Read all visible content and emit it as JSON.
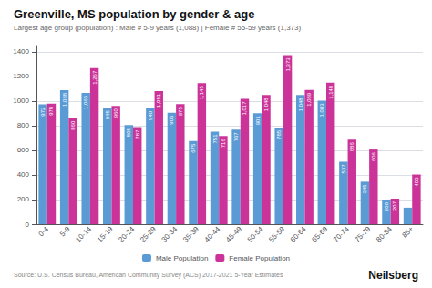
{
  "chart_data": {
    "type": "bar",
    "title": "Greenville, MS population by gender & age",
    "subtitle": "Largest age group (population) : Male # 5-9 years (1,088) | Female # 55-59 years (1,373)",
    "categories": [
      "0-4",
      "5-9",
      "10-14",
      "15-19",
      "20-24",
      "25-29",
      "30-34",
      "35-39",
      "40-44",
      "45-49",
      "50-54",
      "55-59",
      "60-64",
      "65-69",
      "70-74",
      "75-79",
      "80-84",
      "85+"
    ],
    "series": [
      {
        "name": "Male Population",
        "color": "#5b9bd5",
        "values": [
          972,
          1088,
          1066,
          945,
          805,
          940,
          905,
          675,
          751,
          767,
          901,
          785,
          1048,
          1003,
          507,
          345,
          200,
          134
        ],
        "value_labels": [
          "972",
          "1,088",
          "1,066",
          "945",
          "805",
          "940",
          "905",
          "675",
          "751",
          "767",
          "901",
          "785",
          "1,048",
          "1,003",
          "507",
          "345",
          "200",
          null
        ]
      },
      {
        "name": "Female Population",
        "color": "#cc3399",
        "values": [
          978,
          860,
          1267,
          960,
          787,
          1081,
          975,
          1145,
          716,
          1017,
          1048,
          1373,
          1089,
          1148,
          686,
          606,
          207,
          403
        ],
        "value_labels": [
          "978",
          "860",
          "1,267",
          "960",
          "787",
          "1,081",
          "975",
          "1,145",
          "716",
          "1,017",
          "1,048",
          "1,373",
          "1,089",
          "1,148",
          "686",
          "606",
          "207",
          "403"
        ]
      }
    ],
    "ylim": [
      0,
      1450
    ],
    "yticks": [
      0,
      200,
      400,
      600,
      800,
      1000,
      1200,
      1400
    ],
    "grid": true,
    "legend": "bottom",
    "data_labels": true,
    "source": "Source: U.S. Census Bureau, American Community Survey (ACS) 2017-2021 5-Year Estimates",
    "annotations": [
      "Neilsberg"
    ]
  }
}
